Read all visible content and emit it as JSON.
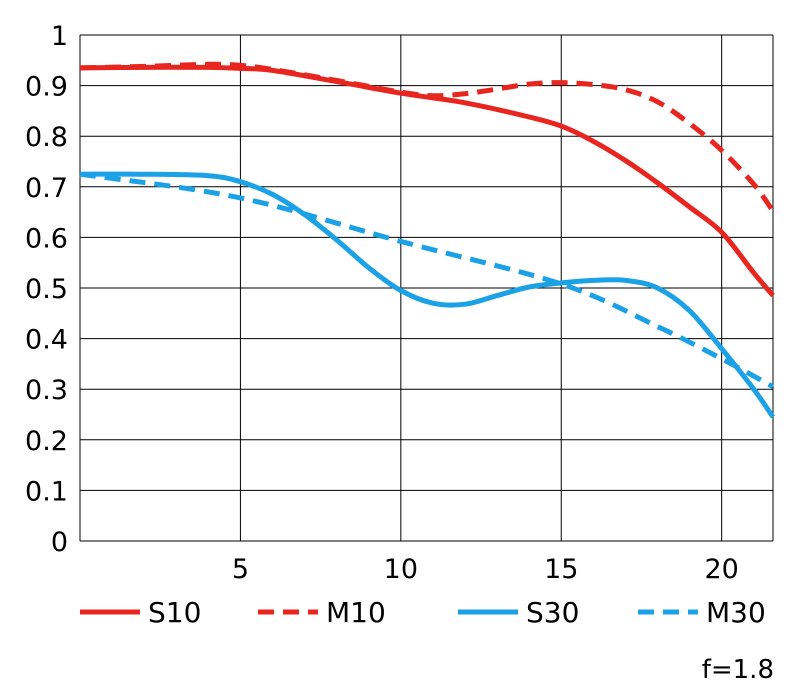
{
  "chart_data": {
    "type": "line",
    "title": "",
    "xlabel": "",
    "ylabel": "",
    "xlim": [
      0,
      21.6
    ],
    "ylim": [
      0,
      1
    ],
    "xticks": [
      5,
      10,
      15,
      20
    ],
    "xtick_labels": [
      "5",
      "10",
      "15",
      "20"
    ],
    "yticks": [
      0,
      0.1,
      0.2,
      0.3,
      0.4,
      0.5,
      0.6,
      0.7,
      0.8,
      0.9,
      1
    ],
    "ytick_labels": [
      "0",
      "0.1",
      "0.2",
      "0.3",
      "0.4",
      "0.5",
      "0.6",
      "0.7",
      "0.8",
      "0.9",
      "1"
    ],
    "grid": true,
    "legend_position": "bottom",
    "annotation": "f=1.8",
    "series": [
      {
        "name": "S10",
        "color": "#e8251f",
        "dashed": false,
        "x": [
          0,
          2,
          4,
          5,
          6,
          8,
          10,
          12,
          14,
          15,
          16,
          17,
          18,
          19,
          20,
          21,
          21.6
        ],
        "y": [
          0.935,
          0.936,
          0.936,
          0.934,
          0.93,
          0.908,
          0.885,
          0.866,
          0.838,
          0.82,
          0.79,
          0.752,
          0.708,
          0.66,
          0.61,
          0.53,
          0.485
        ]
      },
      {
        "name": "M10",
        "color": "#e8251f",
        "dashed": true,
        "x": [
          0,
          2,
          4,
          5,
          6,
          8,
          10,
          11,
          12,
          13,
          14,
          15,
          16,
          17,
          18,
          19,
          20,
          21,
          21.6
        ],
        "y": [
          0.935,
          0.938,
          0.942,
          0.94,
          0.932,
          0.91,
          0.887,
          0.88,
          0.884,
          0.893,
          0.903,
          0.906,
          0.902,
          0.892,
          0.868,
          0.825,
          0.772,
          0.705,
          0.652
        ]
      },
      {
        "name": "S30",
        "color": "#1aa1e6",
        "dashed": false,
        "x": [
          0,
          2,
          4,
          5,
          6,
          7,
          8,
          9,
          10,
          11,
          12,
          13,
          14,
          15,
          16,
          17,
          18,
          19,
          20,
          21,
          21.6
        ],
        "y": [
          0.725,
          0.725,
          0.722,
          0.71,
          0.685,
          0.645,
          0.595,
          0.54,
          0.495,
          0.47,
          0.468,
          0.485,
          0.502,
          0.51,
          0.515,
          0.515,
          0.5,
          0.455,
          0.38,
          0.3,
          0.245
        ]
      },
      {
        "name": "M30",
        "color": "#1aa1e6",
        "dashed": true,
        "x": [
          0,
          5,
          10,
          15,
          18,
          20,
          21.6
        ],
        "y": [
          0.725,
          0.678,
          0.592,
          0.508,
          0.424,
          0.36,
          0.305
        ]
      }
    ]
  }
}
